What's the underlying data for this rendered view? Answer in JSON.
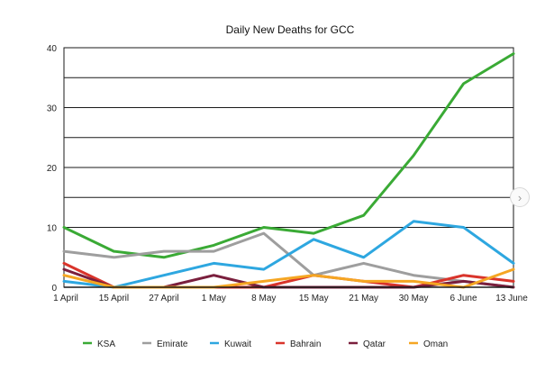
{
  "chart_data": {
    "type": "line",
    "title": "Daily New Deaths for GCC",
    "xlabel": "",
    "ylabel": "",
    "ylim": [
      0,
      40
    ],
    "yticks": [
      0,
      10,
      20,
      30,
      40
    ],
    "gridlines": [
      15,
      25,
      35
    ],
    "grid": true,
    "legend_position": "bottom",
    "categories": [
      "1 April",
      "15 April",
      "27 April",
      "1 May",
      "8 May",
      "15 May",
      "21 May",
      "30 May",
      "6 June",
      "13 June"
    ],
    "series": [
      {
        "name": "KSA",
        "color": "#3aaa35",
        "values": [
          10,
          6,
          5,
          7,
          10,
          9,
          12,
          22,
          34,
          39
        ]
      },
      {
        "name": "Emirate",
        "color": "#9e9e9e",
        "values": [
          6,
          5,
          6,
          6,
          9,
          2,
          4,
          2,
          1,
          0
        ]
      },
      {
        "name": "Kuwait",
        "color": "#2ea7e0",
        "values": [
          1,
          0,
          2,
          4,
          3,
          8,
          5,
          11,
          10,
          4
        ]
      },
      {
        "name": "Bahrain",
        "color": "#d9342b",
        "values": [
          4,
          0,
          0,
          0,
          0,
          2,
          1,
          0,
          2,
          1
        ]
      },
      {
        "name": "Qatar",
        "color": "#7a1f3d",
        "values": [
          3,
          0,
          0,
          2,
          0,
          0,
          0,
          0,
          1,
          0
        ]
      },
      {
        "name": "Oman",
        "color": "#f5a623",
        "values": [
          2,
          0,
          0,
          0,
          1,
          2,
          1,
          1,
          0,
          3
        ]
      }
    ]
  },
  "icons": {
    "scroll": "chevron-right-icon",
    "scroll_glyph": "›"
  }
}
